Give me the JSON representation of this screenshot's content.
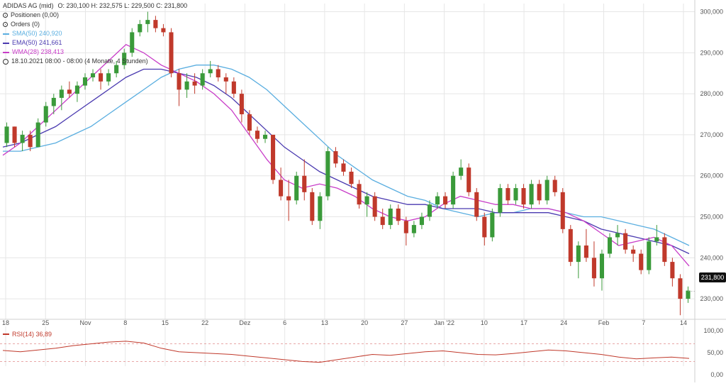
{
  "legend": {
    "title": "ADIDAS AG (mid)",
    "ohlc": "O: 230,100  H: 232,575  L: 229,500  C: 231,800",
    "positions": "Positionen (0,00)",
    "orders": "Orders (0)",
    "sma": "SMA(50)  240,920",
    "ema": "EMA(50)  241,661",
    "wma": "WMA(28)  238,413",
    "period": "18.10.2021 08:00 - 08:00  (4 Monate, 4 Stunden)"
  },
  "rsi_legend": "RSI(14)  36,89",
  "last_price_label": "231,800",
  "colors": {
    "up": "#3a9a3a",
    "down": "#c0392b",
    "sma": "#5aaee0",
    "ema": "#4a3ab0",
    "wma": "#c83cc8",
    "rsi": "#c0392b",
    "grid": "#e6e6e6"
  },
  "chart_data": [
    {
      "type": "candlestick",
      "title": "ADIDAS AG (mid)",
      "ylim": [
        225,
        302
      ],
      "y_ticks": [
        "300,000",
        "290,000",
        "280,000",
        "270,000",
        "260,000",
        "250,000",
        "240,000",
        "230,000"
      ],
      "y_tick_values": [
        300,
        290,
        280,
        270,
        260,
        250,
        240,
        230
      ],
      "x_tick_labels": [
        "18",
        "25",
        "Nov",
        "8",
        "15",
        "22",
        "Dez",
        "6",
        "13",
        "20",
        "27",
        "Jan '22",
        "10",
        "17",
        "24",
        "Feb",
        "7",
        "14"
      ],
      "grid": true,
      "candles": [
        {
          "o": 268,
          "h": 273,
          "l": 267,
          "c": 272
        },
        {
          "o": 272,
          "h": 272,
          "l": 267,
          "c": 268
        },
        {
          "o": 268,
          "h": 271,
          "l": 266,
          "c": 270
        },
        {
          "o": 270,
          "h": 271,
          "l": 266,
          "c": 267
        },
        {
          "o": 267,
          "h": 274,
          "l": 267,
          "c": 273
        },
        {
          "o": 273,
          "h": 278,
          "l": 272,
          "c": 277
        },
        {
          "o": 277,
          "h": 280,
          "l": 275,
          "c": 279
        },
        {
          "o": 279,
          "h": 282,
          "l": 276,
          "c": 281
        },
        {
          "o": 281,
          "h": 283,
          "l": 279,
          "c": 280
        },
        {
          "o": 280,
          "h": 283,
          "l": 278,
          "c": 282
        },
        {
          "o": 282,
          "h": 285,
          "l": 281,
          "c": 284
        },
        {
          "o": 284,
          "h": 286,
          "l": 283,
          "c": 285
        },
        {
          "o": 285,
          "h": 286,
          "l": 281,
          "c": 283
        },
        {
          "o": 283,
          "h": 286,
          "l": 282,
          "c": 285
        },
        {
          "o": 285,
          "h": 288,
          "l": 284,
          "c": 287
        },
        {
          "o": 287,
          "h": 291,
          "l": 286,
          "c": 290
        },
        {
          "o": 290,
          "h": 296,
          "l": 289,
          "c": 295
        },
        {
          "o": 295,
          "h": 298,
          "l": 294,
          "c": 297
        },
        {
          "o": 297,
          "h": 300,
          "l": 295,
          "c": 298
        },
        {
          "o": 298,
          "h": 299,
          "l": 295,
          "c": 296
        },
        {
          "o": 296,
          "h": 297,
          "l": 294,
          "c": 295
        },
        {
          "o": 295,
          "h": 296,
          "l": 284,
          "c": 285
        },
        {
          "o": 285,
          "h": 286,
          "l": 277,
          "c": 281
        },
        {
          "o": 281,
          "h": 285,
          "l": 279,
          "c": 283
        },
        {
          "o": 283,
          "h": 285,
          "l": 280,
          "c": 282
        },
        {
          "o": 282,
          "h": 286,
          "l": 281,
          "c": 285
        },
        {
          "o": 285,
          "h": 288,
          "l": 284,
          "c": 286
        },
        {
          "o": 286,
          "h": 287,
          "l": 283,
          "c": 284
        },
        {
          "o": 284,
          "h": 285,
          "l": 280,
          "c": 283
        },
        {
          "o": 283,
          "h": 284,
          "l": 279,
          "c": 280
        },
        {
          "o": 280,
          "h": 281,
          "l": 273,
          "c": 275
        },
        {
          "o": 275,
          "h": 276,
          "l": 270,
          "c": 271
        },
        {
          "o": 271,
          "h": 272,
          "l": 268,
          "c": 269
        },
        {
          "o": 269,
          "h": 271,
          "l": 268,
          "c": 270
        },
        {
          "o": 270,
          "h": 270,
          "l": 258,
          "c": 259
        },
        {
          "o": 259,
          "h": 262,
          "l": 254,
          "c": 255
        },
        {
          "o": 255,
          "h": 259,
          "l": 249,
          "c": 254
        },
        {
          "o": 254,
          "h": 261,
          "l": 253,
          "c": 260
        },
        {
          "o": 260,
          "h": 264,
          "l": 254,
          "c": 256
        },
        {
          "o": 256,
          "h": 257,
          "l": 248,
          "c": 249
        },
        {
          "o": 249,
          "h": 256,
          "l": 247,
          "c": 255
        },
        {
          "o": 255,
          "h": 267,
          "l": 254,
          "c": 266
        },
        {
          "o": 266,
          "h": 267,
          "l": 262,
          "c": 263
        },
        {
          "o": 263,
          "h": 264,
          "l": 260,
          "c": 261
        },
        {
          "o": 261,
          "h": 262,
          "l": 257,
          "c": 258
        },
        {
          "o": 258,
          "h": 259,
          "l": 252,
          "c": 253
        },
        {
          "o": 253,
          "h": 256,
          "l": 250,
          "c": 255
        },
        {
          "o": 255,
          "h": 256,
          "l": 249,
          "c": 250
        },
        {
          "o": 250,
          "h": 252,
          "l": 247,
          "c": 248
        },
        {
          "o": 248,
          "h": 253,
          "l": 247,
          "c": 252
        },
        {
          "o": 252,
          "h": 253,
          "l": 248,
          "c": 249
        },
        {
          "o": 249,
          "h": 250,
          "l": 243,
          "c": 246
        },
        {
          "o": 246,
          "h": 249,
          "l": 245,
          "c": 248
        },
        {
          "o": 248,
          "h": 251,
          "l": 247,
          "c": 250
        },
        {
          "o": 250,
          "h": 254,
          "l": 249,
          "c": 253
        },
        {
          "o": 253,
          "h": 256,
          "l": 252,
          "c": 255
        },
        {
          "o": 255,
          "h": 256,
          "l": 252,
          "c": 253
        },
        {
          "o": 253,
          "h": 261,
          "l": 252,
          "c": 260
        },
        {
          "o": 260,
          "h": 264,
          "l": 259,
          "c": 262
        },
        {
          "o": 262,
          "h": 263,
          "l": 255,
          "c": 256
        },
        {
          "o": 256,
          "h": 257,
          "l": 249,
          "c": 250
        },
        {
          "o": 250,
          "h": 251,
          "l": 243,
          "c": 245
        },
        {
          "o": 245,
          "h": 252,
          "l": 244,
          "c": 251
        },
        {
          "o": 251,
          "h": 258,
          "l": 250,
          "c": 257
        },
        {
          "o": 257,
          "h": 258,
          "l": 253,
          "c": 254
        },
        {
          "o": 254,
          "h": 258,
          "l": 253,
          "c": 257
        },
        {
          "o": 257,
          "h": 258,
          "l": 252,
          "c": 253
        },
        {
          "o": 253,
          "h": 259,
          "l": 252,
          "c": 258
        },
        {
          "o": 258,
          "h": 259,
          "l": 253,
          "c": 254
        },
        {
          "o": 254,
          "h": 260,
          "l": 253,
          "c": 259
        },
        {
          "o": 259,
          "h": 260,
          "l": 255,
          "c": 256
        },
        {
          "o": 256,
          "h": 257,
          "l": 246,
          "c": 247
        },
        {
          "o": 247,
          "h": 248,
          "l": 238,
          "c": 239
        },
        {
          "o": 239,
          "h": 244,
          "l": 235,
          "c": 243
        },
        {
          "o": 243,
          "h": 247,
          "l": 239,
          "c": 240
        },
        {
          "o": 240,
          "h": 244,
          "l": 233,
          "c": 235
        },
        {
          "o": 235,
          "h": 242,
          "l": 232,
          "c": 241
        },
        {
          "o": 241,
          "h": 246,
          "l": 240,
          "c": 245
        },
        {
          "o": 245,
          "h": 248,
          "l": 243,
          "c": 246
        },
        {
          "o": 246,
          "h": 247,
          "l": 241,
          "c": 242
        },
        {
          "o": 242,
          "h": 243,
          "l": 239,
          "c": 241
        },
        {
          "o": 241,
          "h": 242,
          "l": 236,
          "c": 237
        },
        {
          "o": 237,
          "h": 245,
          "l": 236,
          "c": 244
        },
        {
          "o": 244,
          "h": 248,
          "l": 243,
          "c": 245
        },
        {
          "o": 245,
          "h": 246,
          "l": 238,
          "c": 239
        },
        {
          "o": 239,
          "h": 240,
          "l": 233,
          "c": 235
        },
        {
          "o": 235,
          "h": 236,
          "l": 226,
          "c": 230
        },
        {
          "o": 230,
          "h": 233,
          "l": 229,
          "c": 232
        }
      ],
      "sma50": [
        266,
        266,
        267,
        268,
        270,
        272,
        275,
        278,
        281,
        284,
        286,
        287,
        287,
        286,
        284,
        281,
        277,
        273,
        269,
        265,
        262,
        259,
        257,
        255,
        254,
        252,
        251,
        250,
        251,
        251,
        252,
        252,
        251,
        250,
        250,
        249,
        248,
        247,
        245,
        243
      ],
      "ema50": [
        267,
        268,
        270,
        272,
        275,
        278,
        281,
        284,
        286,
        286,
        285,
        284,
        282,
        279,
        275,
        271,
        267,
        264,
        261,
        259,
        257,
        255,
        254,
        253,
        253,
        252,
        252,
        252,
        251,
        251,
        251,
        251,
        250,
        249,
        247,
        246,
        245,
        244,
        243,
        241
      ],
      "wma28": [
        265,
        268,
        272,
        276,
        280,
        284,
        288,
        292,
        290,
        287,
        285,
        283,
        280,
        276,
        270,
        264,
        259,
        257,
        258,
        257,
        255,
        252,
        250,
        249,
        250,
        253,
        255,
        254,
        253,
        253,
        252,
        252,
        251,
        249,
        246,
        243,
        244,
        245,
        243,
        238
      ],
      "last_price": 231.8
    },
    {
      "type": "line",
      "title": "RSI(14)",
      "ylim": [
        0,
        100
      ],
      "y_ticks": [
        "100,00",
        "50,00",
        "0,00"
      ],
      "y_tick_values": [
        100,
        50,
        0
      ],
      "overbought": 70,
      "oversold": 30,
      "values": [
        55,
        52,
        56,
        60,
        66,
        70,
        74,
        76,
        72,
        60,
        52,
        50,
        48,
        46,
        42,
        38,
        34,
        30,
        28,
        34,
        40,
        46,
        44,
        48,
        52,
        54,
        50,
        46,
        45,
        48,
        52,
        56,
        54,
        50,
        46,
        40,
        36,
        38,
        40,
        37
      ]
    }
  ]
}
